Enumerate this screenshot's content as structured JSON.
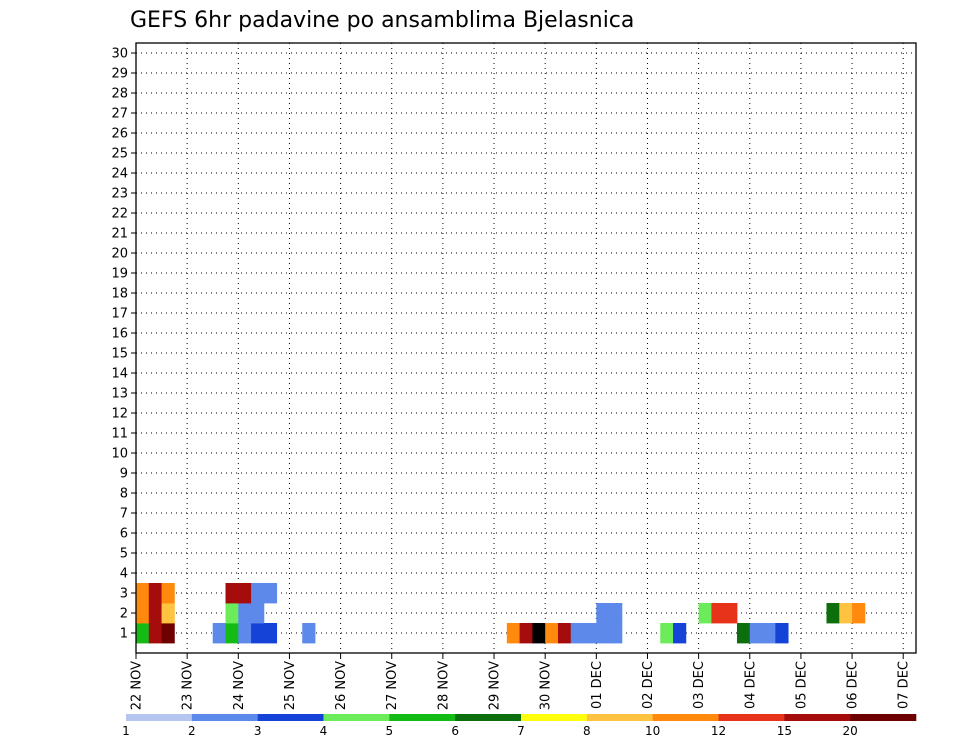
{
  "chart_data": {
    "type": "heatmap",
    "title": "GEFS 6hr padavine po ansamblima Bjelasnica",
    "xlabel": "",
    "ylabel": "",
    "x_tick_labels": [
      "22 NOV",
      "23 NOV",
      "24 NOV",
      "25 NOV",
      "26 NOV",
      "27 NOV",
      "28 NOV",
      "29 NOV",
      "30 NOV",
      "01 DEC",
      "02 DEC",
      "03 DEC",
      "04 DEC",
      "05 DEC",
      "06 DEC",
      "07 DEC"
    ],
    "x_range_days": [
      0,
      15.25
    ],
    "time_step_hours": 6,
    "members": [
      1,
      2,
      3,
      4,
      5,
      6,
      7,
      8,
      9,
      10,
      11,
      12,
      13,
      14,
      15,
      16,
      17,
      18,
      19,
      20,
      21,
      22,
      23,
      24,
      25,
      26,
      27,
      28,
      29,
      30
    ],
    "grid": "dotted",
    "legend": {
      "position": "bottom",
      "levels": [
        "1",
        "2",
        "3",
        "4",
        "5",
        "6",
        "7",
        "8",
        "10",
        "12",
        "15",
        "20"
      ],
      "colors": [
        "#b4c6ef",
        "#5d8aea",
        "#1543d8",
        "#6cec5a",
        "#15bb15",
        "#0d6e0d",
        "#ffff0d",
        "#ffc341",
        "#ff8a0d",
        "#e6331a",
        "#a50d0d",
        "#6e0000"
      ]
    },
    "cells": [
      [
        1,
        0,
        4
      ],
      [
        1,
        1,
        10
      ],
      [
        1,
        2,
        11
      ],
      [
        1,
        6,
        1
      ],
      [
        1,
        7,
        4
      ],
      [
        1,
        8,
        1
      ],
      [
        1,
        9,
        2
      ],
      [
        1,
        10,
        2
      ],
      [
        1,
        13,
        1
      ],
      [
        1,
        29,
        8
      ],
      [
        1,
        30,
        10
      ],
      [
        1,
        31,
        12
      ],
      [
        1,
        32,
        8
      ],
      [
        1,
        33,
        10
      ],
      [
        1,
        34,
        1
      ],
      [
        1,
        35,
        1
      ],
      [
        1,
        36,
        1
      ],
      [
        1,
        37,
        1
      ],
      [
        1,
        41,
        3
      ],
      [
        1,
        42,
        2
      ],
      [
        1,
        47,
        5
      ],
      [
        1,
        48,
        1
      ],
      [
        1,
        49,
        1
      ],
      [
        1,
        50,
        2
      ],
      [
        1,
        70,
        1
      ],
      [
        1,
        71,
        5
      ],
      [
        1,
        72,
        2
      ],
      [
        1,
        73,
        2
      ],
      [
        1,
        74,
        3
      ],
      [
        2,
        0,
        8
      ],
      [
        2,
        1,
        10
      ],
      [
        2,
        2,
        7
      ],
      [
        2,
        7,
        3
      ],
      [
        2,
        8,
        1
      ],
      [
        2,
        9,
        1
      ],
      [
        2,
        36,
        1
      ],
      [
        2,
        37,
        1
      ],
      [
        2,
        44,
        3
      ],
      [
        2,
        45,
        9
      ],
      [
        2,
        46,
        9
      ],
      [
        2,
        54,
        5
      ],
      [
        2,
        55,
        7
      ],
      [
        2,
        56,
        8
      ],
      [
        2,
        65,
        4
      ],
      [
        2,
        66,
        7
      ],
      [
        2,
        73,
        2
      ],
      [
        2,
        74,
        6
      ],
      [
        3,
        0,
        8
      ],
      [
        3,
        1,
        10
      ],
      [
        3,
        2,
        8
      ],
      [
        3,
        7,
        10
      ],
      [
        3,
        8,
        10
      ],
      [
        3,
        9,
        1
      ],
      [
        3,
        10,
        1
      ]
    ]
  }
}
